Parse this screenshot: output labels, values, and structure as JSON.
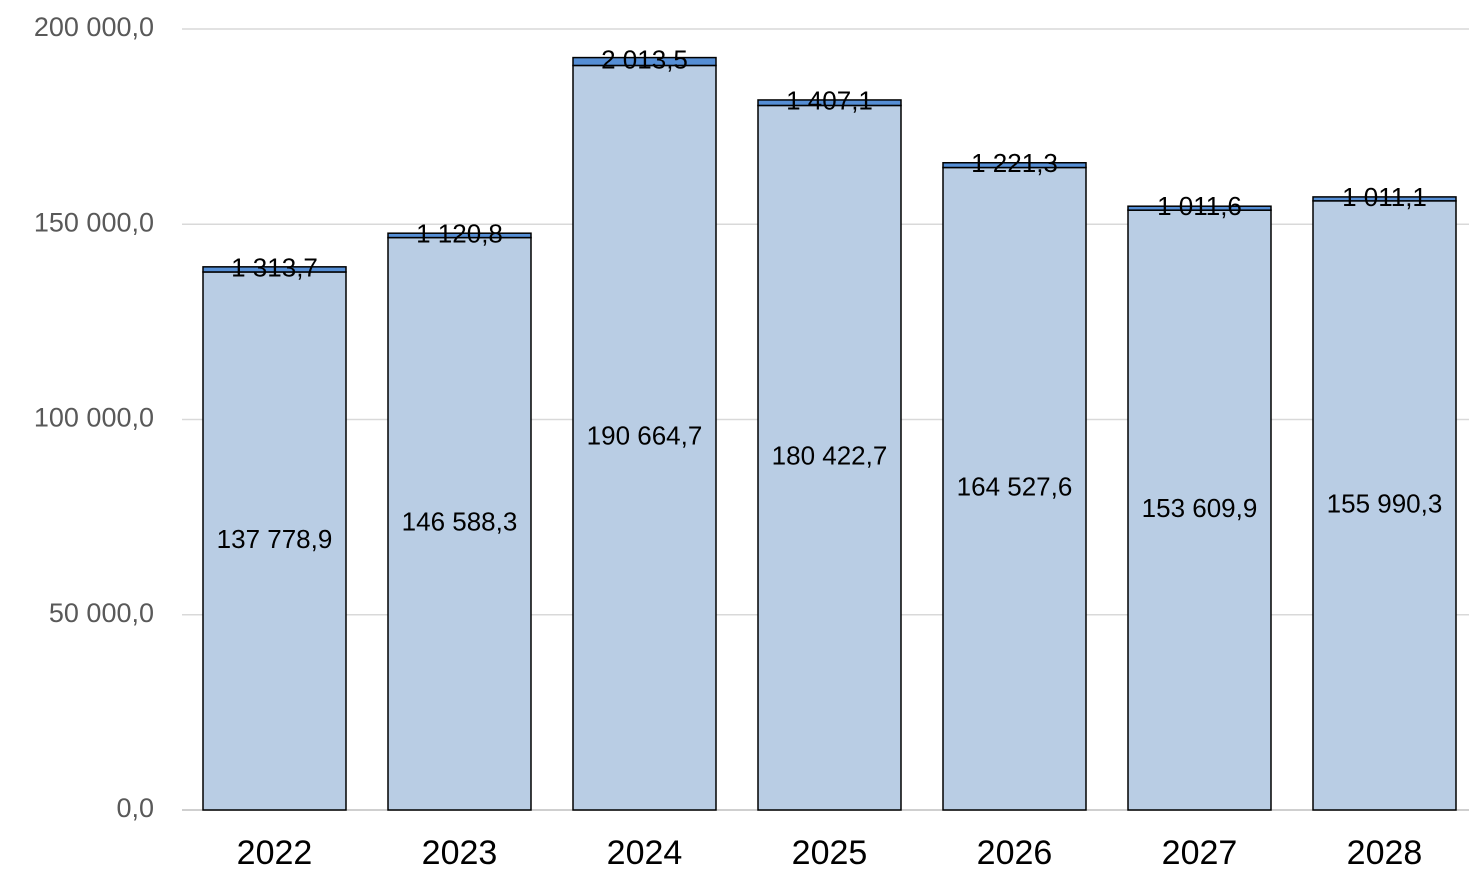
{
  "chart_data": {
    "type": "stacked_bar",
    "categories": [
      "2022",
      "2023",
      "2024",
      "2025",
      "2026",
      "2027",
      "2028"
    ],
    "series": [
      {
        "color": "#b9cde4",
        "values": [
          137778.9,
          146588.3,
          190664.7,
          180422.7,
          164527.6,
          153609.9,
          155990.3
        ],
        "value_labels": [
          "137 778,9",
          "146 588,3",
          "190 664,7",
          "180 422,7",
          "164 527,6",
          "153 609,9",
          "155 990,3"
        ]
      },
      {
        "color": "#558ed5",
        "values": [
          1313.7,
          1120.8,
          2013.5,
          1407.1,
          1221.3,
          1011.6,
          1011.1
        ],
        "value_labels": [
          "1 313,7",
          "1 120,8",
          "2 013,5",
          "1 407,1",
          "1 221,3",
          "1 011,6",
          "1 011,1"
        ]
      }
    ],
    "ylim": [
      0,
      200000
    ],
    "yticks": [
      {
        "value": 0,
        "label": "0,0"
      },
      {
        "value": 50000,
        "label": "50 000,0"
      },
      {
        "value": 100000,
        "label": "100 000,0"
      },
      {
        "value": 150000,
        "label": "150 000,0"
      },
      {
        "value": 200000,
        "label": "200 000,0"
      }
    ],
    "grid": true
  }
}
